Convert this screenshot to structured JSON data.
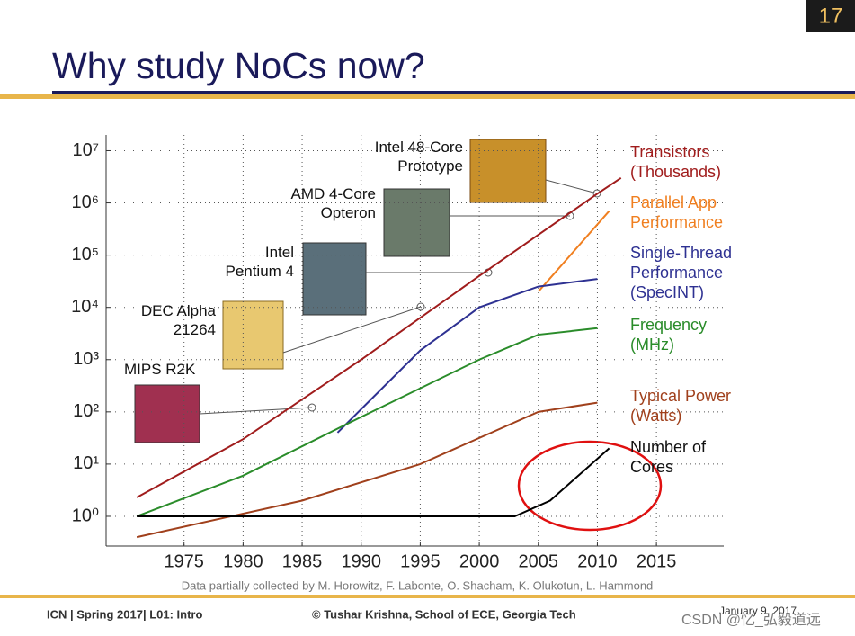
{
  "slide": {
    "number": "17",
    "title": "Why study NoCs now?",
    "footer": {
      "course": "ICN | Spring 2017| L01: Intro",
      "author": "© Tushar Krishna, School of ECE, Georgia Tech",
      "date": "January 9, 2017",
      "watermark": "CSDN @忆_弘毅道远"
    }
  },
  "chart_data": {
    "type": "line",
    "log_scale": true,
    "grid": true,
    "source": "Data partially collected by M. Horowitz, F. Labonte, O. Shacham, K. Olukotun, L. Hammond",
    "xlim": [
      1968.4,
      2020.7
    ],
    "xticks": [
      1975,
      1980,
      1985,
      1990,
      1995,
      2000,
      2005,
      2010,
      2015
    ],
    "ylim": [
      0.27,
      20000000
    ],
    "yticks": [
      {
        "value": 1,
        "label": "10⁰"
      },
      {
        "value": 10,
        "label": "10¹"
      },
      {
        "value": 100,
        "label": "10²"
      },
      {
        "value": 1000,
        "label": "10³"
      },
      {
        "value": 10000,
        "label": "10⁴"
      },
      {
        "value": 100000,
        "label": "10⁵"
      },
      {
        "value": 1000000,
        "label": "10⁶"
      },
      {
        "value": 10000000,
        "label": "10⁷"
      }
    ],
    "series": [
      {
        "name": "Transistors (Thousands)",
        "color": "#a01c1c",
        "x": [
          1971,
          1980,
          1990,
          2000,
          2010,
          2012
        ],
        "values": [
          2.3,
          30,
          1000,
          40000,
          1500000,
          3000000
        ]
      },
      {
        "name": "Parallel App Performance",
        "color": "#f07f20",
        "x": [
          2005,
          2011
        ],
        "values": [
          20000,
          700000
        ]
      },
      {
        "name": "Single-Thread Performance (SpecINT)",
        "color": "#2e3192",
        "x": [
          1988,
          1995,
          2000,
          2005,
          2010
        ],
        "values": [
          40,
          1500,
          10000,
          25000,
          35000
        ]
      },
      {
        "name": "Frequency (MHz)",
        "color": "#2a8c2a",
        "x": [
          1971,
          1980,
          1990,
          2000,
          2005,
          2010
        ],
        "values": [
          1,
          6,
          80,
          1000,
          3000,
          4000
        ]
      },
      {
        "name": "Typical Power (Watts)",
        "color": "#a0401c",
        "x": [
          1971,
          1985,
          1995,
          2005,
          2010
        ],
        "values": [
          0.4,
          2,
          10,
          100,
          150
        ]
      },
      {
        "name": "Number of Cores",
        "color": "#000000",
        "x": [
          1971,
          2003,
          2006,
          2011
        ],
        "values": [
          1,
          1,
          2,
          20
        ]
      }
    ],
    "annotations": [
      "Intel 48-Core Prototype",
      "AMD 4-Core Opteron",
      "Intel Pentium 4",
      "DEC Alpha 21264",
      "MIPS R2K"
    ]
  }
}
